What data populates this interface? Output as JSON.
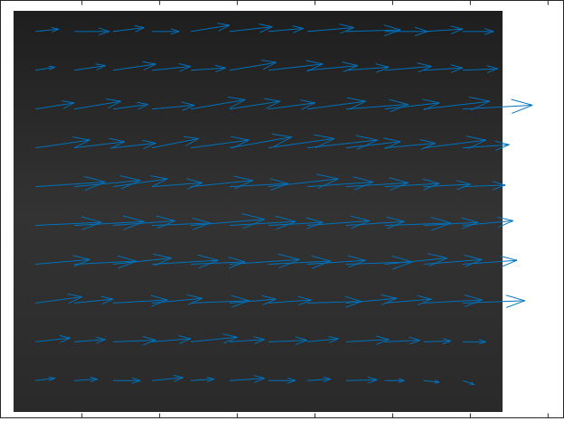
{
  "chart_data": {
    "type": "quiver",
    "color": "#0072bd",
    "grid": false,
    "tick_labels": false,
    "xlim": [
      -5,
      720
    ],
    "ylim": [
      538,
      0
    ],
    "xticks": [
      100,
      200,
      300,
      400,
      500,
      600,
      700
    ],
    "x": [
      40,
      90,
      140,
      190,
      240,
      290,
      340,
      390,
      440,
      490,
      540,
      590,
      40,
      90,
      140,
      190,
      240,
      290,
      340,
      390,
      440,
      490,
      540,
      590,
      40,
      90,
      140,
      190,
      240,
      290,
      340,
      390,
      440,
      490,
      540,
      590,
      40,
      90,
      140,
      190,
      240,
      290,
      340,
      390,
      440,
      490,
      540,
      590,
      40,
      90,
      140,
      190,
      240,
      290,
      340,
      390,
      440,
      490,
      540,
      590,
      40,
      90,
      140,
      190,
      240,
      290,
      340,
      390,
      440,
      490,
      540,
      590,
      40,
      90,
      140,
      190,
      240,
      290,
      340,
      390,
      440,
      490,
      540,
      590,
      40,
      90,
      140,
      190,
      240,
      290,
      340,
      390,
      440,
      490,
      540,
      590,
      40,
      90,
      140,
      190,
      240,
      290,
      340,
      390,
      440,
      490,
      540,
      590,
      40,
      90,
      140,
      190,
      240,
      290,
      340,
      390,
      440,
      490,
      540,
      590
    ],
    "y": [
      40,
      40,
      40,
      40,
      40,
      40,
      40,
      40,
      40,
      40,
      40,
      40,
      90,
      90,
      90,
      90,
      90,
      90,
      90,
      90,
      90,
      90,
      90,
      90,
      140,
      140,
      140,
      140,
      140,
      140,
      140,
      140,
      140,
      140,
      140,
      140,
      190,
      190,
      190,
      190,
      190,
      190,
      190,
      190,
      190,
      190,
      190,
      190,
      240,
      240,
      240,
      240,
      240,
      240,
      240,
      240,
      240,
      240,
      240,
      240,
      290,
      290,
      290,
      290,
      290,
      290,
      290,
      290,
      290,
      290,
      290,
      290,
      340,
      340,
      340,
      340,
      340,
      340,
      340,
      340,
      340,
      340,
      340,
      340,
      390,
      390,
      390,
      390,
      390,
      390,
      390,
      390,
      390,
      390,
      390,
      390,
      440,
      440,
      440,
      440,
      440,
      440,
      440,
      440,
      440,
      440,
      440,
      440,
      490,
      490,
      490,
      490,
      490,
      490,
      490,
      490,
      490,
      490,
      490,
      490
    ],
    "u": [
      30,
      45,
      40,
      35,
      50,
      55,
      45,
      60,
      70,
      55,
      50,
      40,
      25,
      40,
      55,
      50,
      45,
      60,
      70,
      65,
      55,
      60,
      50,
      45,
      50,
      60,
      45,
      55,
      70,
      65,
      60,
      75,
      80,
      70,
      85,
      90,
      70,
      65,
      55,
      60,
      75,
      80,
      85,
      90,
      70,
      65,
      80,
      60,
      90,
      85,
      70,
      65,
      80,
      75,
      90,
      85,
      80,
      70,
      60,
      55,
      85,
      90,
      80,
      75,
      95,
      85,
      70,
      80,
      75,
      85,
      70,
      65,
      70,
      80,
      75,
      85,
      70,
      90,
      80,
      75,
      85,
      80,
      75,
      70,
      60,
      50,
      70,
      65,
      75,
      60,
      55,
      70,
      65,
      60,
      75,
      80,
      45,
      40,
      55,
      50,
      60,
      45,
      50,
      40,
      55,
      45,
      35,
      30,
      25,
      30,
      35,
      40,
      30,
      45,
      35,
      30,
      40,
      25,
      20,
      15
    ],
    "v": [
      -3,
      0,
      -5,
      0,
      -8,
      -6,
      -4,
      -5,
      -2,
      0,
      -3,
      0,
      -4,
      -6,
      -8,
      -5,
      -3,
      -10,
      -8,
      -6,
      -4,
      -5,
      -3,
      -2,
      -8,
      -10,
      -6,
      -5,
      -12,
      -10,
      -8,
      -10,
      -6,
      -8,
      -10,
      -5,
      -10,
      -8,
      -6,
      -12,
      -10,
      -14,
      -12,
      -10,
      -8,
      -6,
      -10,
      -4,
      -6,
      -8,
      -10,
      -5,
      -8,
      -4,
      -10,
      -6,
      -5,
      -4,
      -3,
      -2,
      -4,
      -5,
      -6,
      -3,
      -8,
      -5,
      -4,
      -6,
      -5,
      -3,
      -4,
      -6,
      -6,
      -4,
      -8,
      -5,
      -3,
      -6,
      -4,
      -5,
      -3,
      -8,
      -6,
      -5,
      -8,
      -5,
      -4,
      -6,
      -3,
      -5,
      -4,
      -2,
      -6,
      -5,
      -4,
      -3,
      -5,
      -3,
      -2,
      -4,
      -6,
      -3,
      -2,
      -4,
      -3,
      -2,
      -1,
      0,
      -3,
      -2,
      0,
      -4,
      -2,
      -3,
      0,
      -2,
      -1,
      0,
      2,
      5
    ]
  }
}
